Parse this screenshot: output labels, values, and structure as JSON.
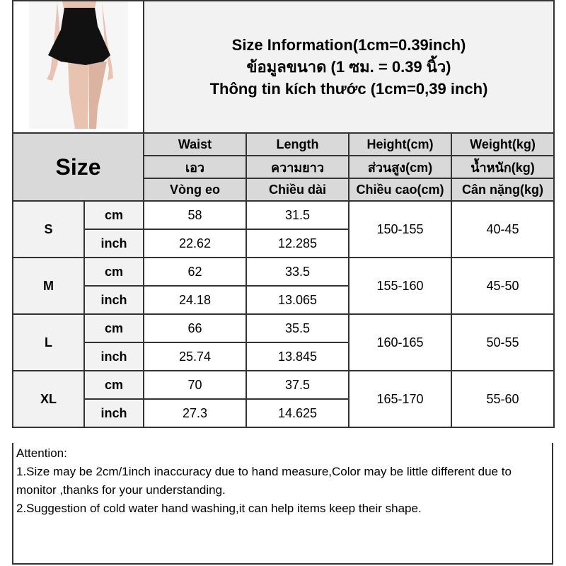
{
  "title_lines": [
    "Size Information(1cm=0.39inch)",
    "ข้อมูลขนาด (1 ซม. = 0.39 นิ้ว)",
    "Thông tin kích thước (1cm=0,39 inch)"
  ],
  "size_header": "Size",
  "columns": [
    {
      "en": "Waist",
      "th": "เอว",
      "vi": "Vòng eo"
    },
    {
      "en": "Length",
      "th": "ความยาว",
      "vi": "Chiều dài"
    },
    {
      "en": "Height(cm)",
      "th": "ส่วนสูง(cm)",
      "vi": "Chiều cao(cm)"
    },
    {
      "en": "Weight(kg)",
      "th": "น้ำหนัก(kg)",
      "vi": "Cân nặng(kg)"
    }
  ],
  "rows": [
    {
      "size": "S",
      "cm": {
        "unit": "cm",
        "waist": "58",
        "length": "31.5"
      },
      "inch": {
        "unit": "inch",
        "waist": "22.62",
        "length": "12.285"
      },
      "height": "150-155",
      "weight": "40-45"
    },
    {
      "size": "M",
      "cm": {
        "unit": "cm",
        "waist": "62",
        "length": "33.5"
      },
      "inch": {
        "unit": "inch",
        "waist": "24.18",
        "length": "13.065"
      },
      "height": "155-160",
      "weight": "45-50"
    },
    {
      "size": "L",
      "cm": {
        "unit": "cm",
        "waist": "66",
        "length": "35.5"
      },
      "inch": {
        "unit": "inch",
        "waist": "25.74",
        "length": "13.845"
      },
      "height": "160-165",
      "weight": "50-55"
    },
    {
      "size": "XL",
      "cm": {
        "unit": "cm",
        "waist": "70",
        "length": "37.5"
      },
      "inch": {
        "unit": "inch",
        "waist": "27.3",
        "length": "14.625"
      },
      "height": "165-170",
      "weight": "55-60"
    }
  ],
  "attention": {
    "heading": "Attention:",
    "notes": [
      "1.Size may be 2cm/1inch inaccuracy due to hand measure,Color may be little different due to monitor ,thanks for your understanding.",
      "2.Suggestion of cold water hand washing,it can help items keep their shape."
    ]
  }
}
